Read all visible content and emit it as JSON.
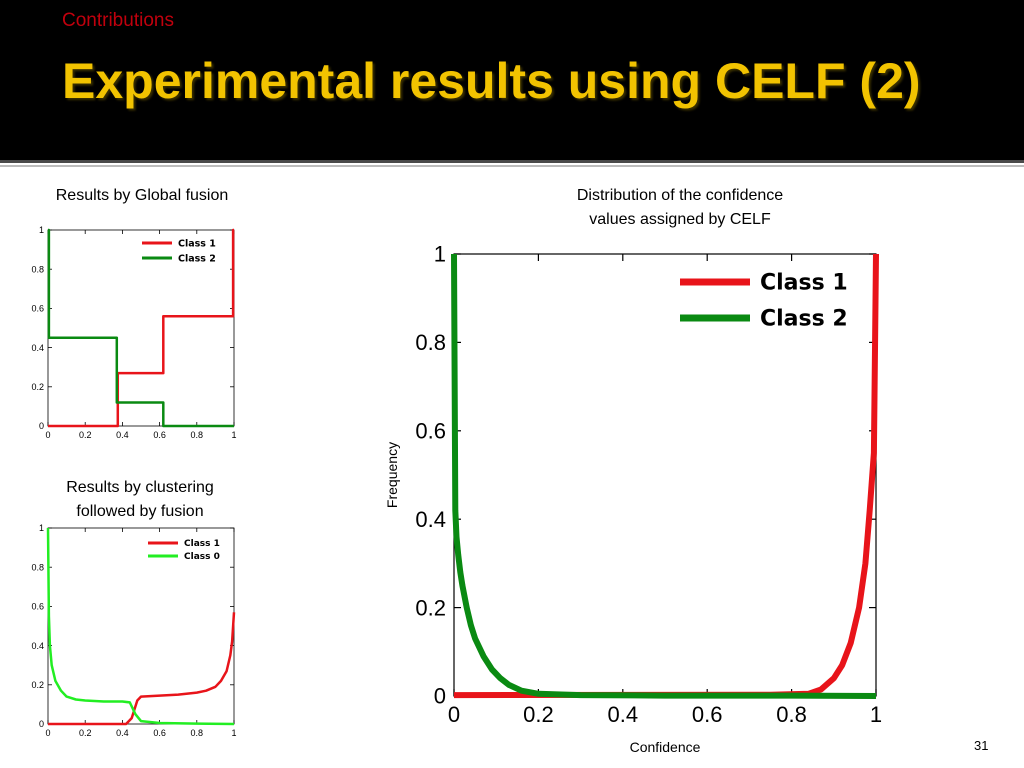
{
  "slide": {
    "section": "Contributions",
    "title": "Experimental results using CELF (2)",
    "page_number": "31"
  },
  "captions": {
    "global": "Results by Global fusion",
    "clustering_line1": "Results by clustering",
    "clustering_line2": "followed by fusion",
    "main_line1": "Distribution of the confidence",
    "main_line2": "values assigned by CELF"
  },
  "colors": {
    "class1_red": "#e8141a",
    "class2_green": "#0a8a12",
    "class0_lightgreen": "#22ee22",
    "title_yellow": "#f2c300",
    "section_red": "#c0000d"
  },
  "chart_data": [
    {
      "id": "global",
      "type": "line",
      "xlim": [
        0,
        1
      ],
      "ylim": [
        0,
        1
      ],
      "xticks": [
        "0",
        "0.2",
        "0.4",
        "0.6",
        "0.8",
        "1"
      ],
      "yticks": [
        "0",
        "0.2",
        "0.4",
        "0.6",
        "0.8",
        "1"
      ],
      "legend_position": "top-right",
      "series": [
        {
          "name": "Class 1",
          "color": "#e8141a",
          "x": [
            0,
            0.375,
            0.375,
            0.62,
            0.62,
            0.995,
            0.995,
            1.0
          ],
          "y": [
            0,
            0,
            0.27,
            0.27,
            0.56,
            0.56,
            1.0,
            1.0
          ]
        },
        {
          "name": "Class 2",
          "color": "#0a8a12",
          "x": [
            0.0,
            0.005,
            0.005,
            0.37,
            0.37,
            0.62,
            0.62,
            1.0
          ],
          "y": [
            1.0,
            1.0,
            0.45,
            0.45,
            0.12,
            0.12,
            0.0,
            0.0
          ]
        }
      ]
    },
    {
      "id": "clustering",
      "type": "line",
      "xlim": [
        0,
        1
      ],
      "ylim": [
        0,
        1
      ],
      "xticks": [
        "0",
        "0.2",
        "0.4",
        "0.6",
        "0.8",
        "1"
      ],
      "yticks": [
        "0",
        "0.2",
        "0.4",
        "0.6",
        "0.8",
        "1"
      ],
      "legend_position": "top-right",
      "series": [
        {
          "name": "Class 1",
          "color": "#e8141a",
          "x": [
            0,
            0.42,
            0.45,
            0.48,
            0.5,
            0.6,
            0.7,
            0.8,
            0.85,
            0.9,
            0.93,
            0.96,
            0.98,
            0.99,
            1.0
          ],
          "y": [
            0,
            0,
            0.03,
            0.12,
            0.14,
            0.145,
            0.15,
            0.16,
            0.17,
            0.19,
            0.22,
            0.27,
            0.35,
            0.42,
            0.57
          ]
        },
        {
          "name": "Class 0",
          "color": "#22ee22",
          "x": [
            0,
            0.005,
            0.01,
            0.02,
            0.04,
            0.07,
            0.1,
            0.15,
            0.2,
            0.3,
            0.4,
            0.44,
            0.47,
            0.5,
            0.6,
            0.8,
            1.0
          ],
          "y": [
            1.0,
            0.55,
            0.4,
            0.3,
            0.22,
            0.17,
            0.14,
            0.125,
            0.12,
            0.115,
            0.115,
            0.11,
            0.05,
            0.015,
            0.005,
            0.002,
            0
          ]
        }
      ]
    },
    {
      "id": "main",
      "type": "line",
      "xlabel": "Confidence",
      "ylabel": "Frequency",
      "xlim": [
        0,
        1
      ],
      "ylim": [
        0,
        1
      ],
      "xticks": [
        "0",
        "0.2",
        "0.4",
        "0.6",
        "0.8",
        "1"
      ],
      "yticks": [
        "0",
        "0.2",
        "0.4",
        "0.6",
        "0.8",
        "1"
      ],
      "legend_position": "top-right",
      "series": [
        {
          "name": "Class 1",
          "color": "#e8141a",
          "x": [
            0,
            0.75,
            0.84,
            0.87,
            0.9,
            0.92,
            0.94,
            0.96,
            0.975,
            0.985,
            0.995,
            1.0
          ],
          "y": [
            0.002,
            0.003,
            0.005,
            0.015,
            0.04,
            0.07,
            0.12,
            0.2,
            0.3,
            0.42,
            0.55,
            1.0
          ]
        },
        {
          "name": "Class 2",
          "color": "#0a8a12",
          "x": [
            0,
            0.003,
            0.006,
            0.01,
            0.015,
            0.02,
            0.03,
            0.04,
            0.05,
            0.07,
            0.09,
            0.11,
            0.13,
            0.16,
            0.2,
            0.3,
            0.5,
            0.8,
            1.0
          ],
          "y": [
            1.0,
            0.42,
            0.36,
            0.32,
            0.28,
            0.25,
            0.2,
            0.16,
            0.13,
            0.09,
            0.06,
            0.04,
            0.025,
            0.012,
            0.005,
            0.002,
            0.001,
            0.001,
            0.0
          ]
        }
      ]
    }
  ]
}
